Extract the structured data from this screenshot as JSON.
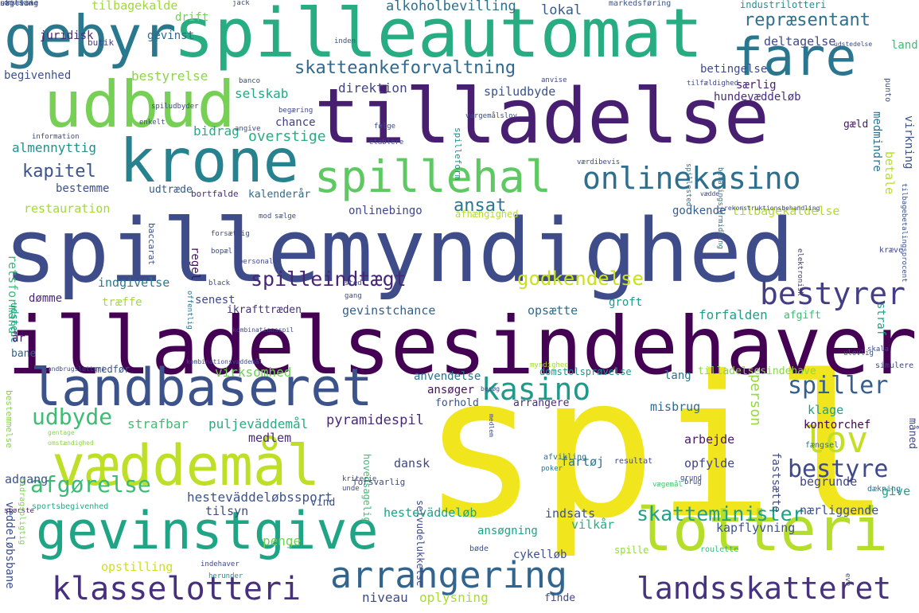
{
  "words": [
    {
      "text": "spil",
      "color": "#f1e51d"
    },
    {
      "text": "spillemyndighed",
      "color": "#3e4c8a"
    },
    {
      "text": "tilladelsesindehaver",
      "color": "#440154"
    },
    {
      "text": "tilladelse",
      "color": "#481f70"
    },
    {
      "text": "spilleautomat",
      "color": "#27ad81"
    },
    {
      "text": "gebyr",
      "color": "#2a788e"
    },
    {
      "text": "fare",
      "color": "#2a768e"
    },
    {
      "text": "udbud",
      "color": "#75d054"
    },
    {
      "text": "krone",
      "color": "#26828e"
    },
    {
      "text": "spillehal",
      "color": "#5ec962"
    },
    {
      "text": "onlinekasino",
      "color": "#2e6f8e"
    },
    {
      "text": "landbaseret",
      "color": "#3b528b"
    },
    {
      "text": "væddemål",
      "color": "#bddf26"
    },
    {
      "text": "gevinstgive",
      "color": "#20a486"
    },
    {
      "text": "lotteri",
      "color": "#b5de2b"
    },
    {
      "text": "arrangering",
      "color": "#32658e"
    },
    {
      "text": "klasselotteri",
      "color": "#472f7d"
    },
    {
      "text": "landsskatteret",
      "color": "#46327e"
    },
    {
      "text": "kasino",
      "color": "#1f9a8a"
    },
    {
      "text": "bestyrer",
      "color": "#433e85"
    },
    {
      "text": "spiller",
      "color": "#355f8d"
    },
    {
      "text": "lov",
      "color": "#c2df23"
    },
    {
      "text": "person",
      "color": "#95d840"
    },
    {
      "text": "bestyre",
      "color": "#3e4989"
    },
    {
      "text": "skatteminister",
      "color": "#1fa088"
    },
    {
      "text": "udbyde",
      "color": "#3fbc73"
    },
    {
      "text": "afgørelse",
      "color": "#3bbb75"
    },
    {
      "text": "spilleindtægt",
      "color": "#482576"
    },
    {
      "text": "godkendelse",
      "color": "#cae11f"
    },
    {
      "text": "betale",
      "color": "#b8de29"
    },
    {
      "text": "kapitel",
      "color": "#3b528b"
    },
    {
      "text": "ansat",
      "color": "#2b758e"
    },
    {
      "text": "skatteankeforvaltning",
      "color": "#31688e"
    },
    {
      "text": "repræsentant",
      "color": "#2c718e"
    },
    {
      "text": "alkoholbevilling",
      "color": "#2d708e"
    },
    {
      "text": "lokal",
      "color": "#375b8d"
    },
    {
      "text": "tilbagekalde",
      "color": "#a0da39"
    },
    {
      "text": "drift",
      "color": "#74d055"
    },
    {
      "text": "markedsføring",
      "color": "#3a538b"
    },
    {
      "text": "industrilotteri",
      "color": "#20928c"
    },
    {
      "text": "jack",
      "color": "#3e4a89"
    },
    {
      "text": "omvekslе",
      "color": "#34608d"
    },
    {
      "text": "juridisk",
      "color": "#482878"
    },
    {
      "text": "gevinst",
      "color": "#31688e"
    },
    {
      "text": "butik",
      "color": "#433d84"
    },
    {
      "text": "begivenhed",
      "color": "#3b528b"
    },
    {
      "text": "bestyrelse",
      "color": "#8bd646"
    },
    {
      "text": "deltagelse",
      "color": "#3f4788"
    },
    {
      "text": "land",
      "color": "#3fbc73"
    },
    {
      "text": "betingelse",
      "color": "#3e4989"
    },
    {
      "text": "særlig",
      "color": "#482173"
    },
    {
      "text": "direktion",
      "color": "#404588"
    },
    {
      "text": "selskab",
      "color": "#22a884"
    },
    {
      "text": "spiludbyde",
      "color": "#3b528b"
    },
    {
      "text": "hundevæddeløb",
      "color": "#472d7b"
    },
    {
      "text": "chance",
      "color": "#424086"
    },
    {
      "text": "bidrag",
      "color": "#25ac82"
    },
    {
      "text": "overstige",
      "color": "#28ae80"
    },
    {
      "text": "medmindre",
      "color": "#2c728e"
    },
    {
      "text": "virkning",
      "color": "#3b528b"
    },
    {
      "text": "almennyttig",
      "color": "#21908d"
    },
    {
      "text": "gæld",
      "color": "#481769"
    },
    {
      "text": "bestemme",
      "color": "#3b528b"
    },
    {
      "text": "udtræde",
      "color": "#38598c"
    },
    {
      "text": "bortfalde",
      "color": "#472a7a"
    },
    {
      "text": "kalenderår",
      "color": "#2f6c8e"
    },
    {
      "text": "restauration",
      "color": "#a2da37"
    },
    {
      "text": "onlinebingo",
      "color": "#3f4788"
    },
    {
      "text": "afhængighed",
      "color": "#b2dd2d"
    },
    {
      "text": "godkende",
      "color": "#365d8d"
    },
    {
      "text": "tilbagekaldelse",
      "color": "#b2dd2d"
    },
    {
      "text": "regel",
      "color": "#471063"
    },
    {
      "text": "retsformand",
      "color": "#38b977"
    },
    {
      "text": "indgivelse",
      "color": "#29798e"
    },
    {
      "text": "dømme",
      "color": "#482979"
    },
    {
      "text": "træffe",
      "color": "#a5db36"
    },
    {
      "text": "senest",
      "color": "#3f4889"
    },
    {
      "text": "ikrafttræden",
      "color": "#46327e"
    },
    {
      "text": "gevinstchance",
      "color": "#34608d"
    },
    {
      "text": "opsætte",
      "color": "#2f6c8e"
    },
    {
      "text": "groft",
      "color": "#1e9b8a"
    },
    {
      "text": "forfalden",
      "color": "#1f9e89"
    },
    {
      "text": "afgift",
      "color": "#3dbc74"
    },
    {
      "text": "straf",
      "color": "#1fa187"
    },
    {
      "text": "udstede",
      "color": "#1f9a8a"
    },
    {
      "text": "år",
      "color": "#471365"
    },
    {
      "text": "bane",
      "color": "#32648e"
    },
    {
      "text": "medfør",
      "color": "#3a548c"
    },
    {
      "text": "virksomhed",
      "color": "#70cf57"
    },
    {
      "text": "domstolsprøvelse",
      "color": "#1f968b"
    },
    {
      "text": "lang",
      "color": "#2c728e"
    },
    {
      "text": "tilladelsesindehave",
      "color": "#8bd646"
    },
    {
      "text": "anvendelse",
      "color": "#2d718e"
    },
    {
      "text": "ansøger",
      "color": "#471164"
    },
    {
      "text": "forhold",
      "color": "#3a548c"
    },
    {
      "text": "arrangere",
      "color": "#472f7d"
    },
    {
      "text": "misbrug",
      "color": "#2f6b8e"
    },
    {
      "text": "klage",
      "color": "#1f9e89"
    },
    {
      "text": "kontorchef",
      "color": "#440154"
    },
    {
      "text": "måned",
      "color": "#3e4a89"
    },
    {
      "text": "strafbar",
      "color": "#3fbc73"
    },
    {
      "text": "puljeväddemål",
      "color": "#25ac82"
    },
    {
      "text": "pyramidespil",
      "color": "#482878"
    },
    {
      "text": "medlem",
      "color": "#482878"
    },
    {
      "text": "arbejde",
      "color": "#481769"
    },
    {
      "text": "opfylde",
      "color": "#404588"
    },
    {
      "text": "adgang",
      "color": "#3b528b"
    },
    {
      "text": "dansk",
      "color": "#3f4788"
    },
    {
      "text": "fartøj",
      "color": "#2d718e"
    },
    {
      "text": "fastsætte",
      "color": "#3e4989"
    },
    {
      "text": "begrunde",
      "color": "#404588"
    },
    {
      "text": "hesteväddeløbssport",
      "color": "#3b528b"
    },
    {
      "text": "tilsyn",
      "color": "#3e4a89"
    },
    {
      "text": "hesteväddeløb",
      "color": "#1fa187"
    },
    {
      "text": "indsats",
      "color": "#3b528b"
    },
    {
      "text": "vilkår",
      "color": "#28ae80"
    },
    {
      "text": "nærliggende",
      "color": "#3b528b"
    },
    {
      "text": "give",
      "color": "#20a386"
    },
    {
      "text": "kapflyvning",
      "color": "#3a548c"
    },
    {
      "text": "penge",
      "color": "#73d056"
    },
    {
      "text": "ansøgning",
      "color": "#1fa188"
    },
    {
      "text": "cykelløb",
      "color": "#3c508b"
    },
    {
      "text": "opstilling",
      "color": "#cde11d"
    },
    {
      "text": "væddeløbsbane",
      "color": "#3c508b"
    },
    {
      "text": "niveau",
      "color": "#3e4989"
    },
    {
      "text": "oplysning",
      "color": "#a8db34"
    },
    {
      "text": "finde",
      "color": "#3e4989"
    },
    {
      "text": "spille",
      "color": "#94d840"
    },
    {
      "text": "bøde",
      "color": "#3b528b"
    },
    {
      "text": "roulette",
      "color": "#38b977"
    },
    {
      "text": "sportsbegivenhed",
      "color": "#22a884"
    },
    {
      "text": "vind",
      "color": "#3b528b"
    },
    {
      "text": "hovedsagelig",
      "color": "#3fbc73"
    },
    {
      "text": "selvudelukkelse",
      "color": "#3e4a89"
    },
    {
      "text": "poker",
      "color": "#2c728e"
    },
    {
      "text": "resultat",
      "color": "#404688"
    },
    {
      "text": "dækning",
      "color": "#2c728e"
    },
    {
      "text": "vægemål",
      "color": "#4ac16d"
    },
    {
      "text": "forsvarlig",
      "color": "#3e4989"
    },
    {
      "text": "afvikling",
      "color": "#2e6e8e"
    },
    {
      "text": "fængsel",
      "color": "#2f6c8e"
    },
    {
      "text": "ulovlig",
      "color": "#3b528b"
    },
    {
      "text": "simulere",
      "color": "#3e4989"
    },
    {
      "text": "skala",
      "color": "#3e4989"
    },
    {
      "text": "største",
      "color": "#481b6d"
    },
    {
      "text": "bestemmelse",
      "color": "#84d44b"
    },
    {
      "text": "bidragspligtig",
      "color": "#7ad151"
    },
    {
      "text": "gentage",
      "color": "#8bd646"
    },
    {
      "text": "omstændighed",
      "color": "#8bd646"
    },
    {
      "text": "indehaver",
      "color": "#3e4989"
    },
    {
      "text": "herunder",
      "color": "#20928c"
    },
    {
      "text": "eve",
      "color": "#3e4989"
    },
    {
      "text": "kræve",
      "color": "#3e4989"
    },
    {
      "text": "elektronisk",
      "color": "#46327e"
    },
    {
      "text": "punto",
      "color": "#3b528b"
    },
    {
      "text": "tilbagebetalingsprocent",
      "color": "#3b528b"
    },
    {
      "text": "inden",
      "color": "#3b528b"
    },
    {
      "text": "banco",
      "color": "#3e4989"
    },
    {
      "text": "information",
      "color": "#3e4989"
    },
    {
      "text": "angive",
      "color": "#3e4989"
    },
    {
      "text": "følge",
      "color": "#3e4989"
    },
    {
      "text": "etablere",
      "color": "#3e4989"
    },
    {
      "text": "spilleform",
      "color": "#21908d"
    },
    {
      "text": "spillested",
      "color": "#2c728e"
    },
    {
      "text": "betalingsformidling",
      "color": "#2c728e"
    },
    {
      "text": "kombinationsspil",
      "color": "#3e4989"
    },
    {
      "text": "kombinationsvæddemål",
      "color": "#3e4989"
    },
    {
      "text": "myndighed",
      "color": "#a2da37"
    },
    {
      "text": "baccarat",
      "color": "#3b528b"
    },
    {
      "text": "mod",
      "color": "#3e4989"
    },
    {
      "text": "sælge",
      "color": "#3e4989"
    },
    {
      "text": "forsætlig",
      "color": "#3e4989"
    },
    {
      "text": "bopæl",
      "color": "#3e4989"
    },
    {
      "text": "personale",
      "color": "#3e4989"
    },
    {
      "text": "black",
      "color": "#3e4989"
    },
    {
      "text": "gang",
      "color": "#3e4989"
    },
    {
      "text": "sted",
      "color": "#3e4989"
    },
    {
      "text": "offentlig",
      "color": "#2c728e"
    },
    {
      "text": "landbrugslotteri",
      "color": "#3e4989"
    },
    {
      "text": "vædde",
      "color": "#3e4989"
    },
    {
      "text": "rekonstruktionsbehandling",
      "color": "#3e4989"
    },
    {
      "text": "anvise",
      "color": "#3e4989"
    },
    {
      "text": "tilfældighed",
      "color": "#3e4989"
    },
    {
      "text": "udstedelse",
      "color": "#3e4989"
    },
    {
      "text": "besøg",
      "color": "#3e4989"
    },
    {
      "text": "medlem",
      "color": "#3e4989"
    },
    {
      "text": "kriterie",
      "color": "#3e4989"
    },
    {
      "text": "unde",
      "color": "#3e4989"
    },
    {
      "text": "grund",
      "color": "#3e4989"
    },
    {
      "text": "brug",
      "color": "#3e4989"
    },
    {
      "text": "værdibevis",
      "color": "#3e4989"
    },
    {
      "text": "vargemålslov",
      "color": "#3e4989"
    },
    {
      "text": "enkelt",
      "color": "#3e4989"
    },
    {
      "text": "begæring",
      "color": "#3e4989"
    },
    {
      "text": "spiludbyder",
      "color": "#3e4989"
    },
    {
      "text": "uagtsom",
      "color": "#3e4989"
    },
    {
      "text": "stilling",
      "color": "#3e4989"
    }
  ]
}
